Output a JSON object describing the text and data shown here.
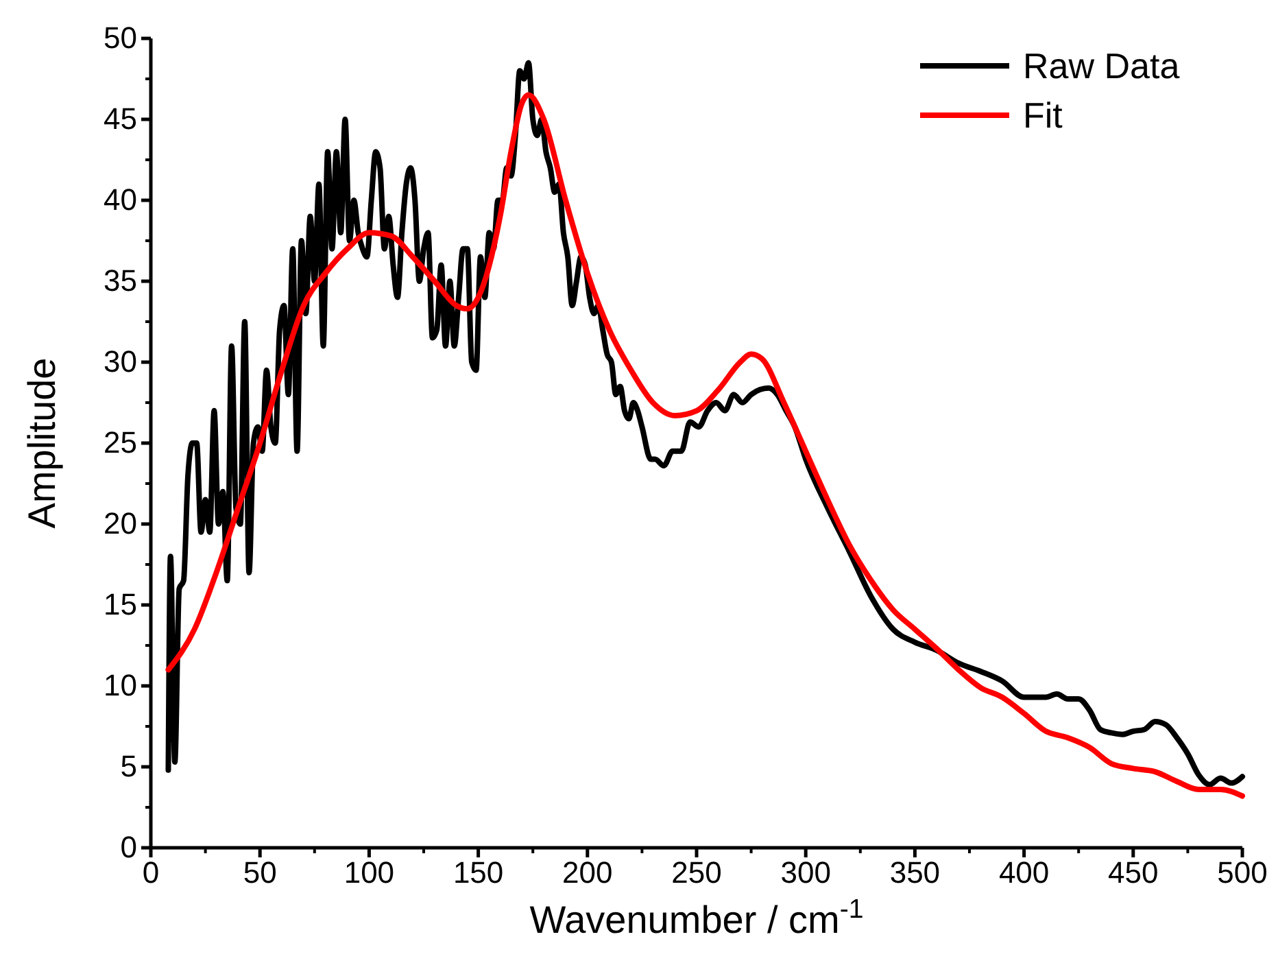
{
  "chart_data": {
    "type": "line",
    "xlabel": "Wavenumber / cm$^{-1}$",
    "ylabel": "Amplitude",
    "xlim": [
      0,
      500
    ],
    "xticks": [
      0,
      50,
      100,
      150,
      200,
      250,
      300,
      350,
      400,
      450,
      500
    ],
    "ylim": [
      0,
      50
    ],
    "yticks": [
      0,
      5,
      10,
      15,
      20,
      25,
      30,
      35,
      40,
      45,
      50
    ],
    "grid": false,
    "legend": "top right",
    "marker": "none",
    "line_style": "solid",
    "series": [
      {
        "name": "Raw Data",
        "color": "#000000",
        "x": [
          8,
          9,
          11,
          13,
          15,
          17,
          19,
          21,
          23,
          25,
          27,
          29,
          31,
          33,
          35,
          37,
          39,
          41,
          43,
          45,
          47,
          49,
          51,
          53,
          55,
          57,
          59,
          61,
          63,
          65,
          67,
          69,
          71,
          73,
          75,
          77,
          79,
          81,
          83,
          85,
          87,
          89,
          91,
          93,
          95,
          97,
          99,
          101,
          103,
          105,
          107,
          109,
          111,
          113,
          115,
          117,
          119,
          121,
          123,
          125,
          127,
          129,
          131,
          133,
          135,
          137,
          139,
          141,
          143,
          145,
          147,
          149,
          151,
          153,
          155,
          157,
          159,
          161,
          163,
          165,
          167,
          169,
          171,
          173,
          175,
          177,
          179,
          181,
          183,
          185,
          187,
          189,
          191,
          193,
          195,
          197,
          199,
          201,
          203,
          205,
          207,
          209,
          211,
          213,
          215,
          217,
          219,
          221,
          223,
          225,
          229,
          231,
          235,
          239,
          243,
          247,
          251,
          255,
          259,
          263,
          267,
          271,
          275,
          279,
          283,
          287,
          291,
          295,
          300,
          310,
          320,
          330,
          340,
          350,
          360,
          370,
          380,
          390,
          400,
          410,
          415,
          420,
          425,
          430,
          435,
          440,
          445,
          450,
          455,
          460,
          465,
          470,
          475,
          480,
          485,
          490,
          495,
          500
        ],
        "values": [
          4.8,
          18,
          5.3,
          16,
          16.5,
          23,
          25,
          25,
          19.5,
          21.5,
          19.5,
          27,
          20,
          22,
          16.5,
          31,
          21,
          20,
          32.5,
          17,
          25,
          26,
          24.5,
          29.5,
          26,
          25,
          32,
          33.5,
          28,
          37,
          24.5,
          37.5,
          33,
          39,
          35,
          41,
          31,
          43,
          37,
          43,
          38,
          45,
          37.5,
          40,
          38,
          37,
          36.5,
          40,
          43,
          42,
          37,
          39,
          36,
          34,
          38,
          41,
          42,
          40,
          35,
          37,
          38,
          31.5,
          32,
          36,
          31,
          35,
          31,
          34,
          37,
          37,
          30,
          29.5,
          36.5,
          34,
          38,
          37,
          40,
          40,
          42,
          41.5,
          44,
          48,
          47.5,
          48.5,
          45,
          44,
          45,
          43,
          42,
          40.5,
          41,
          38,
          36.5,
          33.5,
          35,
          36.5,
          36,
          34,
          33,
          33.5,
          32,
          30.5,
          30,
          28,
          28.5,
          27,
          26.5,
          27.5,
          27,
          26,
          24,
          24,
          23.6,
          24.5,
          24.5,
          26.3,
          26,
          27,
          27.5,
          27,
          28,
          27.5,
          28,
          28.3,
          28.4,
          28,
          27,
          26,
          24,
          21,
          18.3,
          15.5,
          13.5,
          12.7,
          12.2,
          11.4,
          10.9,
          10.3,
          9.3,
          9.3,
          9.5,
          9.2,
          9.2,
          8.5,
          7.3,
          7.1,
          7,
          7.2,
          7.3,
          7.8,
          7.6,
          6.8,
          5.8,
          4.5,
          3.9,
          4.3,
          4,
          4.4
        ]
      },
      {
        "name": "Fit",
        "color": "#ff0000",
        "x": [
          8,
          20,
          30,
          40,
          50,
          60,
          70,
          80,
          90,
          100,
          110,
          120,
          130,
          140,
          145,
          150,
          160,
          165,
          170,
          173,
          180,
          190,
          200,
          210,
          220,
          230,
          240,
          250,
          260,
          270,
          275,
          280,
          290,
          300,
          310,
          320,
          330,
          340,
          350,
          360,
          370,
          380,
          390,
          400,
          410,
          420,
          430,
          440,
          450,
          460,
          470,
          480,
          490,
          500
        ],
        "values": [
          11,
          13.5,
          17,
          21,
          25,
          29.5,
          33.5,
          35.5,
          37,
          38,
          37.8,
          36.5,
          35,
          33.5,
          33.3,
          34,
          39,
          43,
          46,
          46.5,
          45,
          40,
          35.5,
          32,
          29.5,
          27.5,
          26.7,
          27,
          28.3,
          30,
          30.5,
          30.2,
          27.5,
          24.5,
          21.5,
          18.7,
          16.5,
          14.7,
          13.5,
          12.3,
          11,
          9.9,
          9.3,
          8.3,
          7.2,
          6.8,
          6.2,
          5.2,
          4.9,
          4.7,
          4.1,
          3.6,
          3.6,
          3.2
        ]
      }
    ]
  }
}
